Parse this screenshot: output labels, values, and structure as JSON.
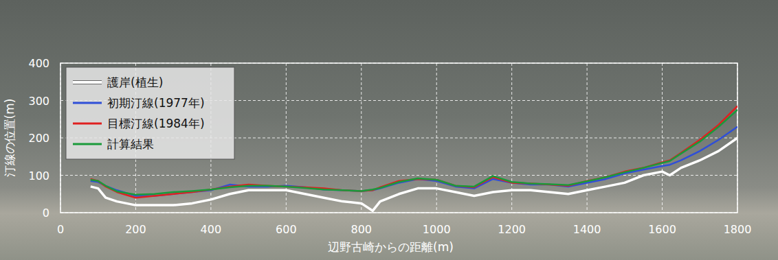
{
  "chart_data": {
    "type": "line",
    "xlabel": "辺野古崎からの距離(m)",
    "ylabel": "汀線の位置(m)",
    "x": [
      80,
      100,
      120,
      150,
      200,
      250,
      300,
      350,
      400,
      450,
      500,
      550,
      600,
      650,
      700,
      750,
      800,
      830,
      850,
      900,
      950,
      1000,
      1050,
      1100,
      1150,
      1200,
      1250,
      1300,
      1350,
      1400,
      1450,
      1500,
      1550,
      1600,
      1620,
      1650,
      1700,
      1750,
      1800
    ],
    "series": [
      {
        "name": "護岸(植生)",
        "color": "#ffffff",
        "values": [
          70,
          65,
          40,
          30,
          20,
          20,
          20,
          25,
          35,
          50,
          60,
          60,
          60,
          50,
          40,
          30,
          25,
          5,
          30,
          50,
          65,
          65,
          55,
          45,
          55,
          60,
          60,
          55,
          50,
          60,
          70,
          80,
          100,
          110,
          100,
          120,
          140,
          165,
          200
        ]
      },
      {
        "name": "初期汀線(1977年)",
        "color": "#2f4fd8",
        "values": [
          85,
          82,
          72,
          60,
          45,
          45,
          50,
          55,
          60,
          75,
          70,
          70,
          72,
          68,
          62,
          60,
          58,
          60,
          65,
          80,
          90,
          85,
          70,
          65,
          90,
          80,
          75,
          75,
          70,
          80,
          90,
          105,
          115,
          125,
          128,
          140,
          165,
          195,
          230
        ]
      },
      {
        "name": "目標汀線(1984年)",
        "color": "#e02020",
        "values": [
          90,
          85,
          70,
          55,
          40,
          45,
          50,
          55,
          62,
          70,
          75,
          72,
          70,
          68,
          65,
          60,
          58,
          60,
          68,
          85,
          90,
          88,
          72,
          68,
          95,
          80,
          78,
          75,
          72,
          85,
          95,
          110,
          120,
          135,
          140,
          160,
          195,
          235,
          285
        ]
      },
      {
        "name": "計算結果",
        "color": "#1a9a3a",
        "values": [
          88,
          85,
          72,
          57,
          48,
          50,
          55,
          58,
          62,
          68,
          72,
          72,
          70,
          66,
          62,
          60,
          58,
          62,
          66,
          82,
          92,
          88,
          72,
          70,
          98,
          82,
          78,
          76,
          74,
          84,
          95,
          108,
          120,
          133,
          138,
          158,
          190,
          230,
          275
        ]
      }
    ],
    "xlim": [
      0,
      1800
    ],
    "xticks": [
      0,
      200,
      400,
      600,
      800,
      1000,
      1200,
      1400,
      1600,
      1800
    ],
    "ylim": [
      0,
      400
    ],
    "yticks": [
      0,
      100,
      200,
      300,
      400
    ],
    "grid": true,
    "legend": "upper left"
  }
}
